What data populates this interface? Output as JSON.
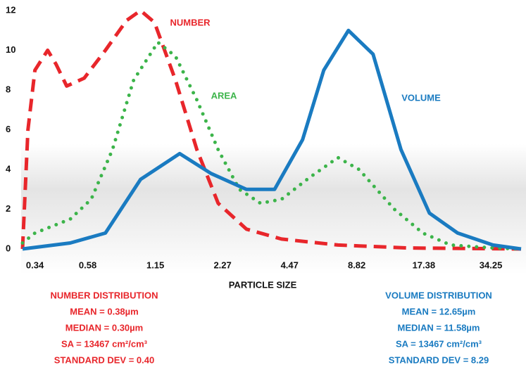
{
  "chart_data": {
    "type": "line",
    "x_label": "PARTICLE SIZE",
    "xscale": "log",
    "xlim": [
      0.3,
      46.5
    ],
    "xticks": [
      0.34,
      0.58,
      1.15,
      2.27,
      4.47,
      8.82,
      17.38,
      34.25
    ],
    "ylim": [
      0,
      12
    ],
    "yticks": [
      0,
      2,
      4,
      6,
      8,
      10,
      12
    ],
    "series": [
      {
        "name": "NUMBER",
        "color": "#e8262b",
        "style": "dashed",
        "x": [
          0.3,
          0.317,
          0.34,
          0.387,
          0.421,
          0.469,
          0.56,
          0.694,
          0.859,
          0.99,
          1.14,
          1.41,
          1.75,
          2.17,
          2.89,
          4.12,
          7.29,
          14.9,
          46.5
        ],
        "values": [
          0,
          6,
          9,
          10,
          9.3,
          8.2,
          8.6,
          10,
          11.5,
          12,
          11.4,
          8.5,
          5,
          2.3,
          1.0,
          0.5,
          0.2,
          0.05,
          0
        ]
      },
      {
        "name": "AREA",
        "color": "#3cb44a",
        "style": "dotted",
        "x": [
          0.3,
          0.34,
          0.486,
          0.601,
          0.745,
          0.923,
          1.18,
          1.41,
          1.75,
          2.17,
          2.69,
          3.33,
          4.12,
          5.48,
          7.29,
          9.03,
          12.9,
          17.2,
          22.8,
          35.0,
          46.5
        ],
        "values": [
          0.3,
          0.8,
          1.5,
          2.5,
          5,
          8.5,
          10.4,
          9.7,
          7.5,
          5,
          3,
          2.3,
          2.5,
          3.6,
          4.6,
          4,
          2,
          0.8,
          0.2,
          0.05,
          0
        ]
      },
      {
        "name": "VOLUME",
        "color": "#1a7bc1",
        "style": "solid",
        "x": [
          0.3,
          0.486,
          0.694,
          0.99,
          1.47,
          2.02,
          2.89,
          3.84,
          5.1,
          6.32,
          8.11,
          10.4,
          13.8,
          18.4,
          24.5,
          35.0,
          46.5
        ],
        "values": [
          0,
          0.3,
          0.8,
          3.5,
          4.8,
          3.8,
          3,
          3,
          5.5,
          9,
          11,
          9.8,
          5,
          1.8,
          0.8,
          0.2,
          0
        ]
      }
    ],
    "summaries": [
      {
        "title": "NUMBER DISTRIBUTION",
        "color": "#e8262b",
        "lines": [
          "MEAN = 0.38µm",
          "MEDIAN = 0.30µm",
          "SA = 13467 cm²/cm³",
          "STANDARD DEV = 0.40"
        ]
      },
      {
        "title": "VOLUME DISTRIBUTION",
        "color": "#1a7bc1",
        "lines": [
          "MEAN = 12.65µm",
          "MEDIAN = 11.58µm",
          "SA = 13467 cm²/cm³",
          "STANDARD DEV = 8.29"
        ]
      }
    ]
  }
}
